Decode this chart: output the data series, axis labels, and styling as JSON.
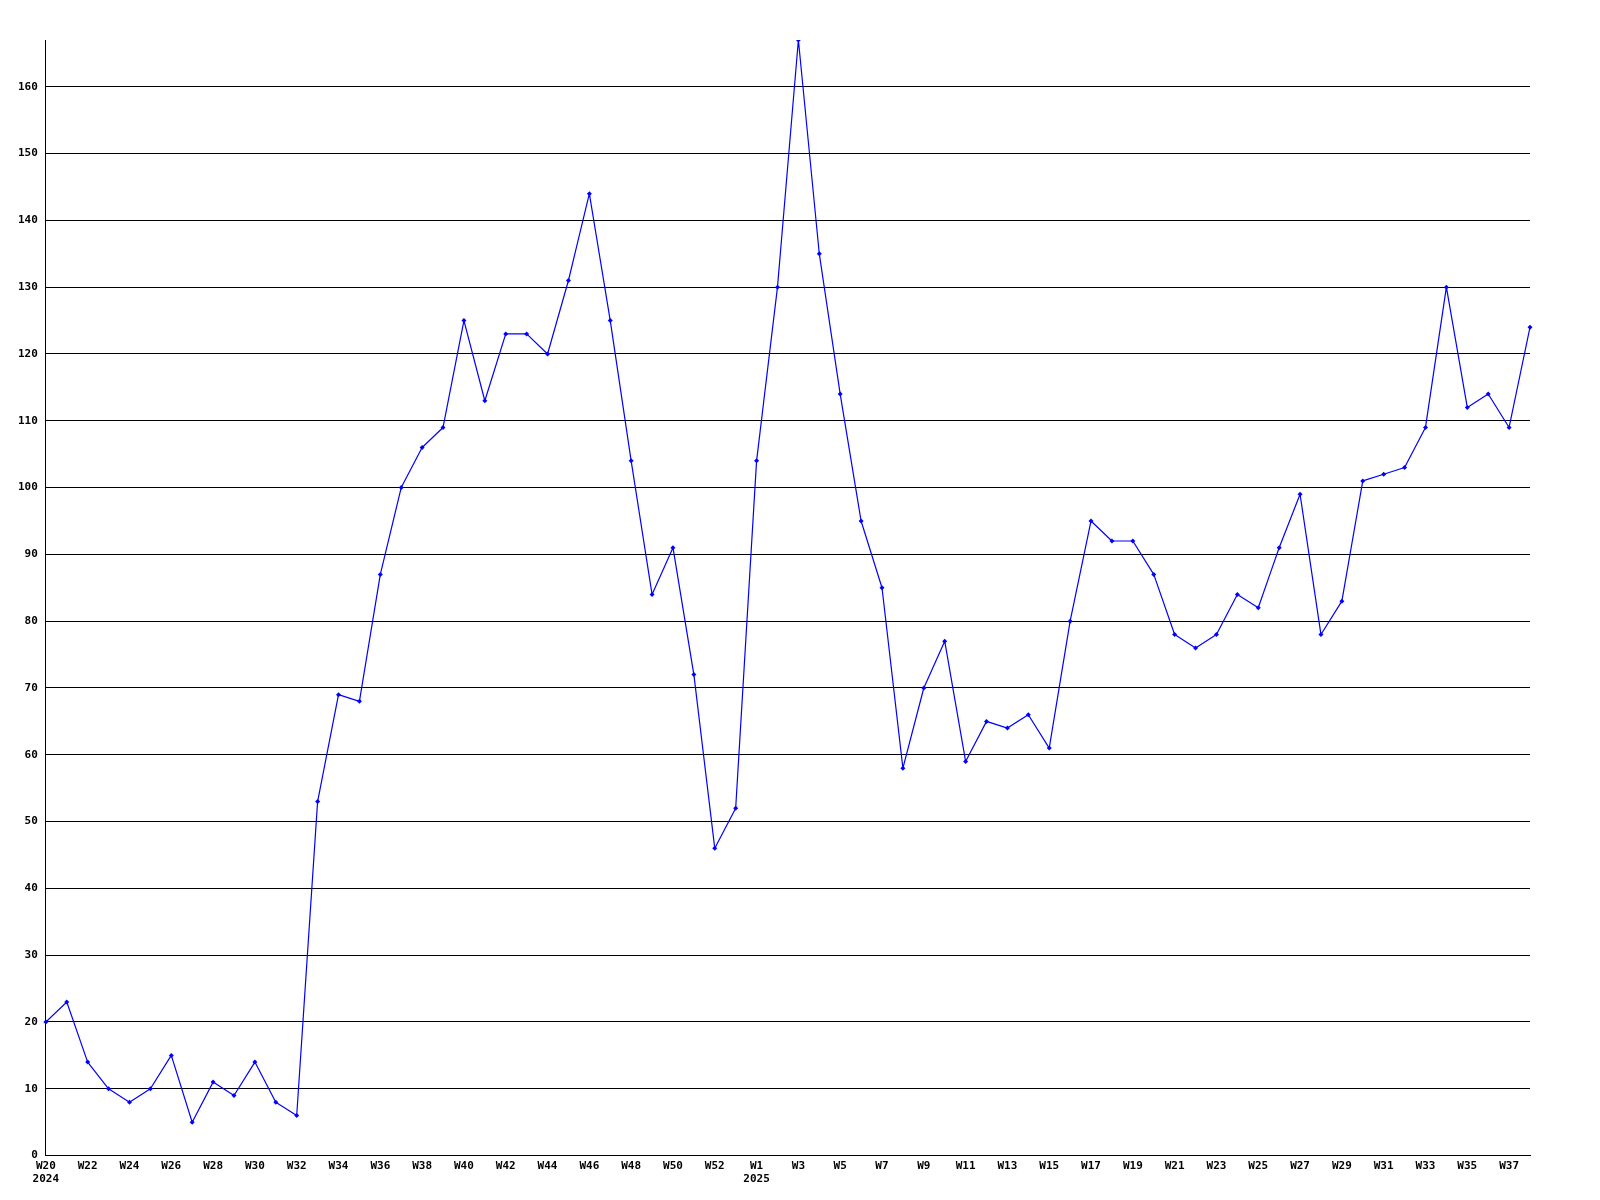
{
  "chart_data": {
    "type": "line",
    "categories": [
      "W20\n2024",
      null,
      "W22",
      null,
      "W24",
      null,
      "W26",
      null,
      "W28",
      null,
      "W30",
      null,
      "W32",
      null,
      "W34",
      null,
      "W36",
      null,
      "W38",
      null,
      "W40",
      null,
      "W42",
      null,
      "W44",
      null,
      "W46",
      null,
      "W48",
      null,
      "W50",
      null,
      "W52",
      null,
      "W1\n2025",
      null,
      "W3",
      null,
      "W5",
      null,
      "W7",
      null,
      "W9",
      null,
      "W11",
      null,
      "W13",
      null,
      "W15",
      null,
      "W17",
      null,
      "W19",
      null,
      "W21",
      null,
      "W23",
      null,
      "W25",
      null,
      "W27",
      null,
      "W29",
      null,
      "W31",
      null,
      "W33",
      null,
      "W35",
      null,
      "W37",
      null
    ],
    "series": [
      {
        "color": "#0000ff",
        "values": [
          20,
          23,
          14,
          10,
          8,
          10,
          15,
          5,
          11,
          9,
          14,
          8,
          6,
          53,
          69,
          68,
          87,
          100,
          106,
          109,
          125,
          113,
          123,
          123,
          120,
          131,
          144,
          125,
          104,
          84,
          91,
          72,
          46,
          52,
          104,
          130,
          167,
          135,
          114,
          95,
          85,
          58,
          70,
          77,
          59,
          65,
          64,
          66,
          61,
          80,
          95,
          92,
          92,
          87,
          78,
          76,
          78,
          84,
          82,
          91,
          99,
          78,
          83,
          101,
          102,
          103,
          109,
          130,
          112,
          114,
          109,
          124
        ]
      }
    ],
    "ylim": [
      0,
      167
    ],
    "yticks": [
      0,
      10,
      20,
      30,
      40,
      50,
      60,
      70,
      80,
      90,
      100,
      110,
      120,
      130,
      140,
      150,
      160
    ],
    "grid": "y",
    "marker": "diamond",
    "line_style": "solid",
    "legend": false
  }
}
